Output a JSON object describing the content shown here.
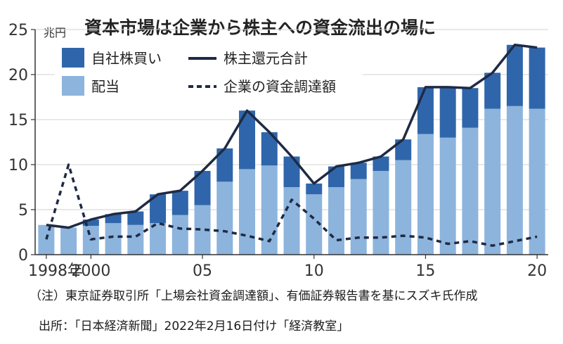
{
  "chart_data": {
    "type": "bar",
    "title": "資本市場は企業から株主への資金流出の場に",
    "unit": "兆円",
    "yticks": [
      0,
      5,
      10,
      15,
      20,
      25
    ],
    "ylim": [
      0,
      25
    ],
    "xlim": [
      1997.5,
      2020.5
    ],
    "x_tick_labels": [
      {
        "x": 1998,
        "label": "1998年"
      },
      {
        "x": 2000,
        "label": "2000"
      },
      {
        "x": 2005,
        "label": "05"
      },
      {
        "x": 2010,
        "label": "10"
      },
      {
        "x": 2015,
        "label": "15"
      },
      {
        "x": 2020,
        "label": "20"
      }
    ],
    "years": [
      1998,
      1999,
      2000,
      2001,
      2002,
      2003,
      2004,
      2005,
      2006,
      2007,
      2008,
      2009,
      2010,
      2011,
      2012,
      2013,
      2014,
      2015,
      2016,
      2017,
      2018,
      2019,
      2020
    ],
    "series": [
      {
        "name": "配当",
        "kind": "bar",
        "color": "#8db4dc",
        "values": [
          3.3,
          3.0,
          3.2,
          3.5,
          3.3,
          3.5,
          4.4,
          5.5,
          8.1,
          9.5,
          9.9,
          7.5,
          6.7,
          7.5,
          8.4,
          9.3,
          10.5,
          13.4,
          13.0,
          14.1,
          16.2,
          16.5,
          16.2
        ]
      },
      {
        "name": "自社株買い",
        "kind": "bar",
        "color": "#2f66ab",
        "values": [
          0.0,
          0.0,
          0.7,
          1.0,
          1.5,
          3.2,
          2.7,
          3.8,
          3.7,
          6.5,
          3.7,
          3.4,
          1.2,
          2.3,
          1.8,
          1.6,
          2.3,
          5.2,
          5.6,
          4.4,
          4.0,
          6.8,
          6.8
        ]
      },
      {
        "name": "株主還元合計",
        "kind": "line",
        "color": "#1f2a44",
        "values": [
          3.3,
          3.0,
          3.9,
          4.5,
          4.8,
          6.7,
          7.1,
          9.3,
          11.8,
          16.0,
          13.6,
          10.9,
          7.9,
          9.8,
          10.2,
          10.9,
          12.8,
          18.6,
          18.6,
          18.5,
          20.2,
          23.3,
          23.0
        ]
      },
      {
        "name": "企業の資金調達額",
        "kind": "dashed-line",
        "color": "#1f2a44",
        "values": [
          1.7,
          10.0,
          1.7,
          2.0,
          2.0,
          3.5,
          2.9,
          2.8,
          2.6,
          2.1,
          1.5,
          6.1,
          4.0,
          1.6,
          1.9,
          1.9,
          2.1,
          1.9,
          1.2,
          1.5,
          1.0,
          1.5,
          2.0
        ]
      }
    ],
    "legend_position": "top-left"
  },
  "notes": {
    "source_note": "（注）東京証券取引所「上場会社資金調達額」、有価証券報告書を基にスズキ氏作成",
    "credit": "出所：「日本経済新聞」2022年2月16日付け「経済教室」"
  }
}
